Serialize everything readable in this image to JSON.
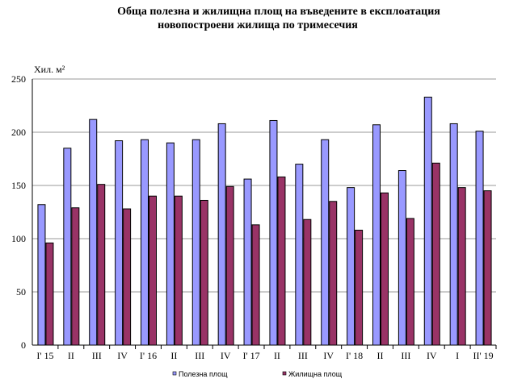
{
  "title_line1": "Обща полезна и жилищна площ на въведените в експлоатация",
  "title_line2": "новопостроени жилища по тримесечия",
  "chart_data": {
    "type": "bar",
    "ylabel": "Хил. м²",
    "ylim": [
      0,
      250
    ],
    "yticks": [
      0,
      50,
      100,
      150,
      200,
      250
    ],
    "categories": [
      "I' 15",
      "II",
      "III",
      "IV",
      "I' 16",
      "II",
      "III",
      "IV",
      "I' 17",
      "II",
      "III",
      "IV",
      "I' 18",
      "II",
      "III",
      "IV",
      "I",
      "II' 19"
    ],
    "series": [
      {
        "name": "Полезна площ",
        "color": "#9999ff",
        "values": [
          132,
          185,
          212,
          192,
          193,
          190,
          193,
          208,
          156,
          211,
          170,
          193,
          148,
          207,
          164,
          233,
          208,
          201
        ]
      },
      {
        "name": "Жилищна площ",
        "color": "#993366",
        "values": [
          96,
          129,
          151,
          128,
          140,
          140,
          136,
          149,
          113,
          158,
          118,
          135,
          108,
          143,
          119,
          171,
          148,
          145
        ]
      }
    ],
    "grid": true,
    "legend": "bottom"
  }
}
